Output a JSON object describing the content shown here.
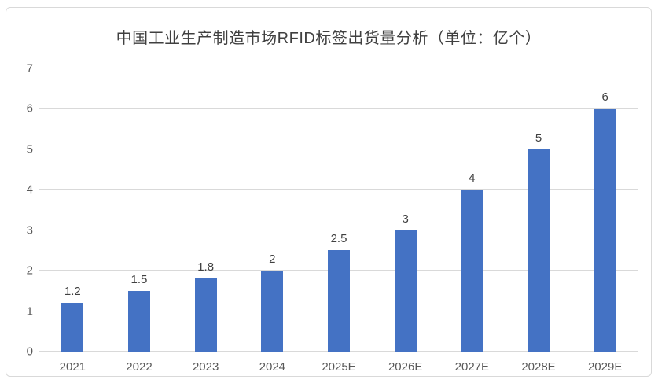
{
  "chart_data": {
    "type": "bar",
    "title": "中国工业生产制造市场RFID标签出货量分析（单位：亿个）",
    "categories": [
      "2021",
      "2022",
      "2023",
      "2024",
      "2025E",
      "2026E",
      "2027E",
      "2028E",
      "2029E"
    ],
    "values": [
      1.2,
      1.5,
      1.8,
      2,
      2.5,
      3,
      4,
      5,
      6
    ],
    "data_labels": [
      "1.2",
      "1.5",
      "1.8",
      "2",
      "2.5",
      "3",
      "4",
      "5",
      "6"
    ],
    "xlabel": "",
    "ylabel": "",
    "ylim": [
      0,
      7
    ],
    "ytick_interval": 1,
    "grid": true,
    "legend": false
  },
  "colors": {
    "bar": "#4472c4",
    "gridline": "#d9d9d9",
    "axis_line": "#d9d9d9",
    "axis_label": "#595959",
    "data_label": "#404040",
    "title": "#404040",
    "border": "#d9d9d9",
    "background": "#ffffff"
  }
}
